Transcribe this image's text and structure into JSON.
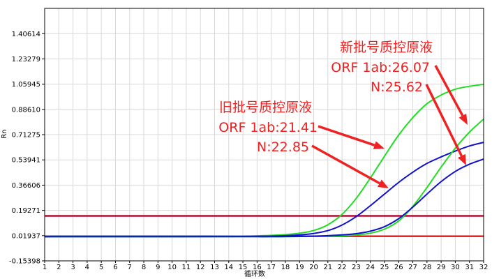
{
  "chart_data": {
    "type": "line",
    "xlabel": "循环数",
    "ylabel": "Rn",
    "xlim": [
      1,
      32
    ],
    "ylim": [
      -0.15398,
      1.58
    ],
    "grid": true,
    "y_ticks": [
      "1.40614",
      "1.23279",
      "1.05945",
      "0.88610",
      "0.71275",
      "0.53941",
      "0.36606",
      "0.19271",
      "0.01937",
      "-0.15398"
    ],
    "y_tick_values": [
      1.40614,
      1.23279,
      1.05945,
      0.8861,
      0.71275,
      0.53941,
      0.36606,
      0.19271,
      0.01937,
      -0.15398
    ],
    "x_ticks": [
      "1",
      "2",
      "3",
      "4",
      "5",
      "6",
      "7",
      "8",
      "9",
      "10",
      "11",
      "12",
      "13",
      "14",
      "15",
      "16",
      "17",
      "18",
      "19",
      "20",
      "21",
      "22",
      "23",
      "24",
      "25",
      "26",
      "27",
      "28",
      "29",
      "30",
      "31",
      "32"
    ],
    "thresholds": [
      {
        "value": 0.155,
        "color": "#b01030"
      },
      {
        "value": 0.015,
        "color": "#ee2222"
      }
    ],
    "x": [
      1,
      2,
      3,
      4,
      5,
      6,
      7,
      8,
      9,
      10,
      11,
      12,
      13,
      14,
      15,
      16,
      17,
      18,
      19,
      20,
      21,
      22,
      23,
      24,
      25,
      26,
      27,
      28,
      29,
      30,
      31,
      32
    ],
    "series": [
      {
        "color": "#22dd22",
        "values": [
          0.012,
          0.012,
          0.012,
          0.012,
          0.012,
          0.012,
          0.012,
          0.012,
          0.012,
          0.013,
          0.013,
          0.013,
          0.014,
          0.015,
          0.016,
          0.018,
          0.021,
          0.026,
          0.036,
          0.055,
          0.094,
          0.165,
          0.275,
          0.415,
          0.565,
          0.71,
          0.83,
          0.925,
          0.985,
          1.025,
          1.045,
          1.058
        ]
      },
      {
        "color": "#1111cc",
        "values": [
          0.012,
          0.012,
          0.012,
          0.012,
          0.012,
          0.012,
          0.012,
          0.012,
          0.012,
          0.012,
          0.012,
          0.013,
          0.013,
          0.013,
          0.014,
          0.015,
          0.016,
          0.019,
          0.024,
          0.034,
          0.054,
          0.092,
          0.15,
          0.225,
          0.305,
          0.385,
          0.455,
          0.515,
          0.56,
          0.6,
          0.635,
          0.66
        ]
      },
      {
        "color": "#22dd22",
        "values": [
          0.012,
          0.012,
          0.012,
          0.012,
          0.012,
          0.012,
          0.012,
          0.012,
          0.012,
          0.012,
          0.012,
          0.012,
          0.012,
          0.012,
          0.012,
          0.012,
          0.012,
          0.012,
          0.013,
          0.014,
          0.015,
          0.018,
          0.024,
          0.036,
          0.064,
          0.12,
          0.22,
          0.35,
          0.49,
          0.62,
          0.73,
          0.82
        ]
      },
      {
        "color": "#1111cc",
        "values": [
          0.012,
          0.012,
          0.012,
          0.012,
          0.012,
          0.012,
          0.012,
          0.012,
          0.012,
          0.012,
          0.012,
          0.012,
          0.012,
          0.012,
          0.012,
          0.012,
          0.012,
          0.013,
          0.014,
          0.016,
          0.019,
          0.024,
          0.033,
          0.05,
          0.081,
          0.136,
          0.215,
          0.305,
          0.39,
          0.46,
          0.51,
          0.545
        ]
      }
    ],
    "annotations": {
      "old": {
        "lines": [
          "旧批号质控原液",
          "ORF 1ab:21.41",
          "N:22.85"
        ]
      },
      "new": {
        "lines": [
          "新批号质控原液",
          "ORF 1ab:26.07",
          "N:25.62"
        ]
      }
    }
  }
}
